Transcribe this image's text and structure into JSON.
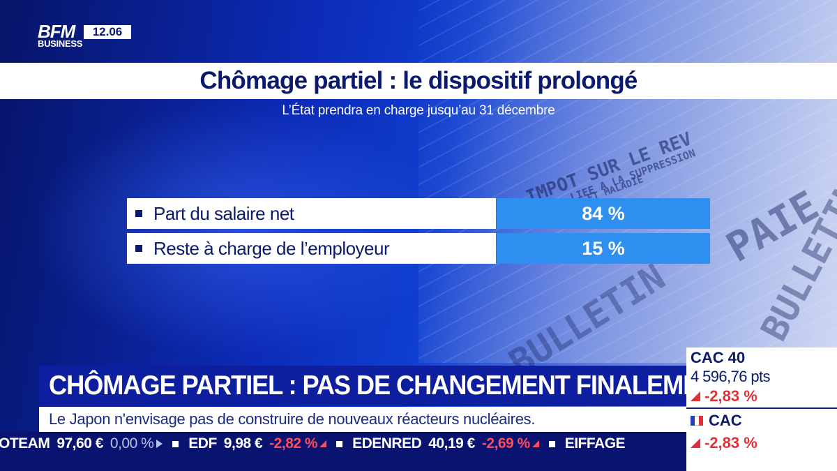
{
  "channel": {
    "logo_line1": "BFM",
    "logo_line2": "BUSINESS",
    "time": "12.06"
  },
  "graphic": {
    "title": "Chômage partiel : le dispositif prolongé",
    "subtitle": "L’État prendra en charge jusqu’au 31 décembre",
    "rows": [
      {
        "label": "Part du salaire net",
        "value": "84 %"
      },
      {
        "label": "Reste à charge de l’employeur",
        "value": "15 %"
      }
    ]
  },
  "background_text": {
    "impot": "IMPOT SUR LE REV",
    "liee": "LIEE A LA SUPPRESSION",
    "maladie": "ET MALADIE",
    "paie": "PAIE",
    "bulletin1": "BULLETIN",
    "bulletin2": "BULLETIN"
  },
  "lower_third": {
    "headline": "CHÔMAGE PARTIEL : PAS DE CHANGEMENT FINALEMENT",
    "news": "Le Japon n'envisage pas de construire de nouveaux réacteurs nucléaires."
  },
  "ticker": [
    {
      "name": "OTEAM",
      "price": "97,60 €",
      "change": "0,00 %",
      "trend": "flat"
    },
    {
      "name": "EDF",
      "price": "9,98 €",
      "change": "-2,82 %",
      "trend": "down"
    },
    {
      "name": "EDENRED",
      "price": "40,19 €",
      "change": "-2,69 %",
      "trend": "down"
    },
    {
      "name": "EIFFAGE",
      "price": "",
      "change": "",
      "trend": "none"
    }
  ],
  "market_panel": {
    "index_name": "CAC 40",
    "points": "4 596,76 pts",
    "change": "-2,83 %",
    "second_name": "CAC",
    "second_change": "-2,83 %"
  },
  "colors": {
    "navy": "#0b1a6a",
    "accent_blue": "#2f8ff0",
    "down_red": "#e0303a",
    "flag_blue": "#1f3fbf",
    "flag_white": "#ffffff",
    "flag_red": "#e0303a"
  }
}
